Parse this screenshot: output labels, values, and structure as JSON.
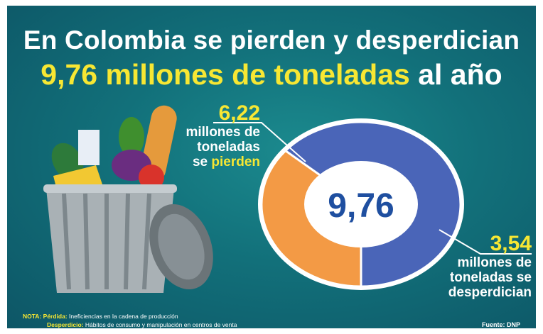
{
  "title": {
    "line1": "En Colombia se pierden y desperdician",
    "line2_highlight": "9,76 millones de toneladas",
    "line2_rest": "al año"
  },
  "chart_data": {
    "type": "pie",
    "center_label": "9,76",
    "slices": [
      {
        "value": 6.22,
        "value_label": "6,22",
        "label_lines": [
          "millones de",
          "toneladas",
          "se"
        ],
        "label_highlight": "pierden",
        "color": "#4a65b8"
      },
      {
        "value": 3.54,
        "value_label": "3,54",
        "label_lines": [
          "millones de",
          "toneladas se"
        ],
        "label_highlight": "desperdician",
        "color": "#f39a45"
      }
    ]
  },
  "note": {
    "prefix": "NOTA:",
    "loss_term": "Pérdida:",
    "loss_desc": "Ineficiencias en la cadena de producción",
    "waste_term": "Desperdicio:",
    "waste_desc": "Hábitos de consumo y manipulación en centros de venta"
  },
  "source": "Fuente: DNP",
  "colors": {
    "background": "#12707a",
    "accent": "#f7e733",
    "center_text": "#1f4fa0"
  }
}
